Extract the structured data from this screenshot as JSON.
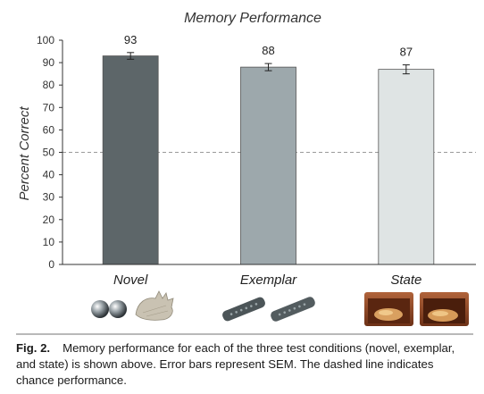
{
  "chart_data": {
    "type": "bar",
    "title": "Memory Performance",
    "ylabel": "Percent Correct",
    "xlabel": "",
    "categories": [
      "Novel",
      "Exemplar",
      "State"
    ],
    "values": [
      93,
      88,
      87
    ],
    "errors": [
      1.5,
      1.6,
      2.0
    ],
    "data_labels": [
      "93",
      "88",
      "87"
    ],
    "ylim": [
      0,
      100
    ],
    "yticks": [
      "0",
      "10",
      "20",
      "30",
      "40",
      "50",
      "60",
      "70",
      "80",
      "90",
      "100"
    ],
    "chance_line": 50,
    "bar_colors": [
      "#5d6669",
      "#9da8ac",
      "#dfe4e4"
    ],
    "grid": false
  },
  "images": {
    "novel": [
      "metal-balls-icon",
      "glove-icon"
    ],
    "exemplar": [
      "remote-control-icon",
      "remote-control-icon"
    ],
    "state": [
      "bread-box-closed-icon",
      "bread-box-open-icon"
    ]
  },
  "caption": {
    "label": "Fig. 2.",
    "text": "Memory performance for each of the three test conditions (novel, exemplar, and state) is shown above. Error bars represent SEM. The dashed line indicates chance performance."
  }
}
